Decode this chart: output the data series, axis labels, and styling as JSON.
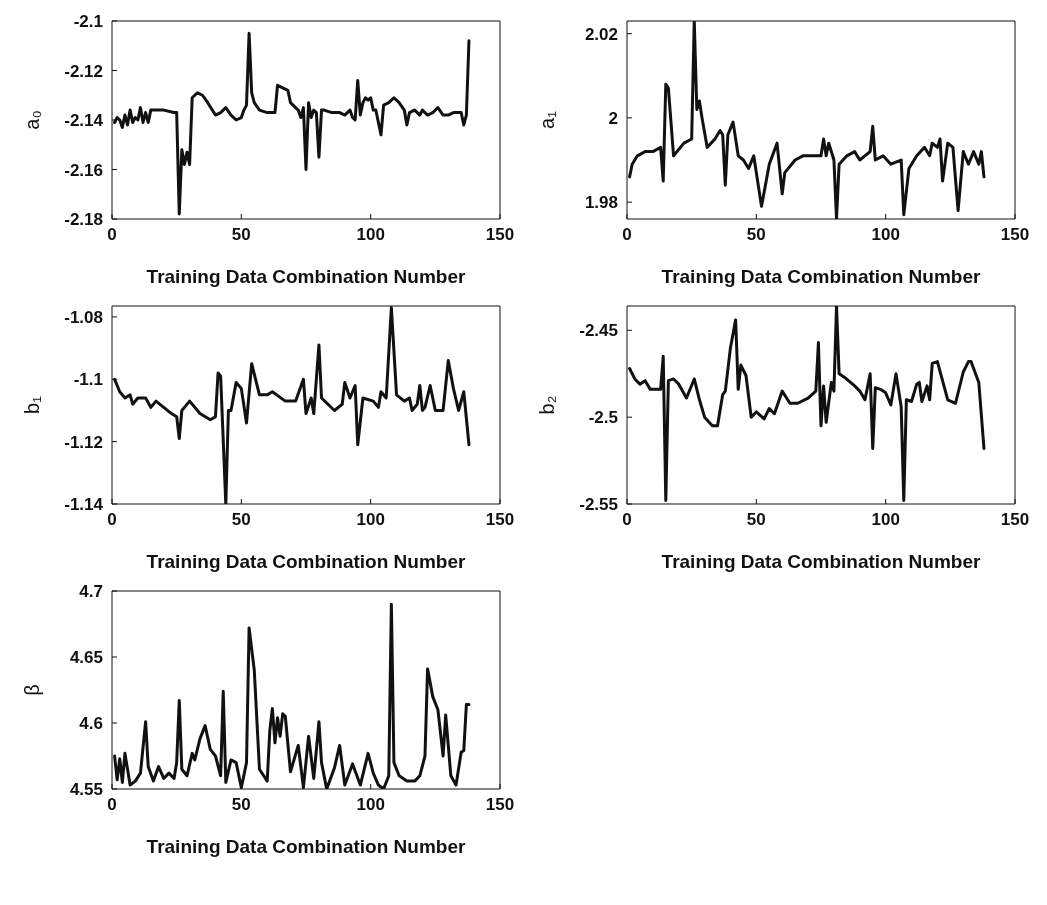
{
  "chart_data": [
    {
      "type": "line",
      "xlabel": "Training Data Combination Number",
      "ylabel": "a₀",
      "xlim": [
        0,
        150
      ],
      "xticks": [
        0,
        50,
        100,
        150
      ],
      "ylim": [
        -2.18,
        -2.1
      ],
      "yticks": [
        -2.18,
        -2.16,
        -2.14,
        -2.12,
        -2.1
      ],
      "marker": "none",
      "grid": false,
      "series": [
        {
          "color": "#111111",
          "x": [
            1,
            2,
            3,
            4,
            5,
            6,
            7,
            8,
            9,
            10,
            11,
            12,
            13,
            14,
            15,
            17,
            20,
            24,
            25,
            26,
            27,
            28,
            29,
            30,
            31,
            33,
            35,
            37,
            40,
            42,
            44,
            46,
            48,
            50,
            51,
            52,
            53,
            54,
            55,
            57,
            60,
            63,
            64,
            66,
            68,
            69,
            70,
            72,
            73,
            74,
            75,
            76,
            77,
            78,
            79,
            80,
            81,
            82,
            85,
            88,
            90,
            92,
            93,
            94,
            95,
            96,
            97,
            98,
            99,
            100,
            101,
            102,
            104,
            105,
            107,
            109,
            111,
            113,
            114,
            115,
            117,
            119,
            120,
            122,
            124,
            126,
            128,
            130,
            132,
            134,
            135,
            136,
            137,
            138
          ],
          "values": [
            -2.141,
            -2.139,
            -2.14,
            -2.143,
            -2.138,
            -2.142,
            -2.136,
            -2.141,
            -2.139,
            -2.14,
            -2.135,
            -2.141,
            -2.137,
            -2.141,
            -2.136,
            -2.136,
            -2.136,
            -2.137,
            -2.137,
            -2.178,
            -2.152,
            -2.158,
            -2.153,
            -2.158,
            -2.131,
            -2.129,
            -2.13,
            -2.133,
            -2.138,
            -2.137,
            -2.135,
            -2.138,
            -2.14,
            -2.139,
            -2.136,
            -2.134,
            -2.105,
            -2.129,
            -2.133,
            -2.136,
            -2.137,
            -2.137,
            -2.126,
            -2.127,
            -2.128,
            -2.133,
            -2.134,
            -2.136,
            -2.139,
            -2.135,
            -2.16,
            -2.133,
            -2.139,
            -2.136,
            -2.137,
            -2.155,
            -2.136,
            -2.136,
            -2.137,
            -2.137,
            -2.138,
            -2.136,
            -2.139,
            -2.14,
            -2.124,
            -2.138,
            -2.133,
            -2.131,
            -2.132,
            -2.131,
            -2.136,
            -2.136,
            -2.146,
            -2.134,
            -2.133,
            -2.131,
            -2.133,
            -2.136,
            -2.142,
            -2.137,
            -2.136,
            -2.138,
            -2.136,
            -2.138,
            -2.137,
            -2.135,
            -2.138,
            -2.138,
            -2.137,
            -2.137,
            -2.137,
            -2.142,
            -2.138,
            -2.108
          ]
        }
      ]
    },
    {
      "type": "line",
      "xlabel": "Training Data Combination Number",
      "ylabel": "a₁",
      "xlim": [
        0,
        150
      ],
      "xticks": [
        0,
        50,
        100,
        150
      ],
      "ylim": [
        1.976,
        2.023
      ],
      "yticks": [
        {
          "value": 1.98,
          "label": "1.98"
        },
        {
          "value": 2,
          "label": "2"
        },
        {
          "value": 2.02,
          "label": "2.02"
        }
      ],
      "marker": "none",
      "grid": false,
      "series": [
        {
          "color": "#111111",
          "x": [
            1,
            2,
            4,
            7,
            10,
            13,
            14,
            15,
            16,
            18,
            22,
            25,
            26,
            27,
            28,
            29,
            31,
            34,
            36,
            37,
            38,
            39,
            41,
            43,
            45,
            47,
            49,
            52,
            55,
            58,
            60,
            61,
            65,
            68,
            75,
            76,
            77,
            78,
            80,
            81,
            82,
            85,
            88,
            90,
            94,
            95,
            96,
            99,
            102,
            106,
            107,
            109,
            112,
            115,
            117,
            118,
            120,
            121,
            122,
            124,
            126,
            128,
            130,
            132,
            134,
            136,
            137,
            138
          ],
          "values": [
            1.986,
            1.989,
            1.991,
            1.992,
            1.992,
            1.993,
            1.985,
            2.008,
            2.007,
            1.991,
            1.994,
            1.995,
            2.023,
            2.002,
            2.004,
            2.0,
            1.993,
            1.995,
            1.997,
            1.996,
            1.984,
            1.996,
            1.999,
            1.991,
            1.99,
            1.988,
            1.991,
            1.979,
            1.989,
            1.994,
            1.982,
            1.987,
            1.99,
            1.991,
            1.991,
            1.995,
            1.991,
            1.994,
            1.99,
            1.976,
            1.989,
            1.991,
            1.992,
            1.99,
            1.992,
            1.998,
            1.99,
            1.991,
            1.989,
            1.99,
            1.977,
            1.988,
            1.991,
            1.993,
            1.991,
            1.994,
            1.993,
            1.995,
            1.985,
            1.994,
            1.993,
            1.978,
            1.992,
            1.989,
            1.992,
            1.989,
            1.992,
            1.986
          ]
        }
      ]
    },
    {
      "type": "line",
      "xlabel": "Training Data Combination Number",
      "ylabel": "b₁",
      "xlim": [
        0,
        150
      ],
      "xticks": [
        0,
        50,
        100,
        150
      ],
      "ylim": [
        -1.14,
        -1.0765
      ],
      "yticks": [
        -1.14,
        -1.12,
        {
          "value": -1.1,
          "label": "-1.1"
        },
        -1.08
      ],
      "marker": "none",
      "grid": false,
      "series": [
        {
          "color": "#111111",
          "x": [
            1,
            3,
            5,
            7,
            8,
            10,
            13,
            15,
            17,
            20,
            23,
            25,
            26,
            27,
            30,
            34,
            38,
            40,
            41,
            42,
            44,
            45,
            46,
            48,
            50,
            52,
            54,
            57,
            60,
            62,
            67,
            71,
            74,
            75,
            77,
            78,
            80,
            81,
            86,
            89,
            90,
            92,
            94,
            95,
            97,
            101,
            103,
            104,
            106,
            108,
            110,
            113,
            115,
            116,
            118,
            119,
            120,
            121,
            123,
            125,
            128,
            130,
            132,
            134,
            136,
            138
          ],
          "values": [
            -1.1,
            -1.104,
            -1.106,
            -1.105,
            -1.108,
            -1.106,
            -1.106,
            -1.109,
            -1.107,
            -1.109,
            -1.111,
            -1.112,
            -1.119,
            -1.11,
            -1.107,
            -1.111,
            -1.113,
            -1.112,
            -1.098,
            -1.099,
            -1.14,
            -1.11,
            -1.11,
            -1.101,
            -1.103,
            -1.114,
            -1.095,
            -1.105,
            -1.105,
            -1.104,
            -1.107,
            -1.107,
            -1.1,
            -1.111,
            -1.106,
            -1.111,
            -1.089,
            -1.106,
            -1.11,
            -1.108,
            -1.101,
            -1.106,
            -1.102,
            -1.121,
            -1.106,
            -1.107,
            -1.109,
            -1.104,
            -1.106,
            -1.077,
            -1.105,
            -1.107,
            -1.106,
            -1.11,
            -1.108,
            -1.102,
            -1.11,
            -1.109,
            -1.102,
            -1.11,
            -1.11,
            -1.094,
            -1.103,
            -1.11,
            -1.104,
            -1.121
          ]
        }
      ]
    },
    {
      "type": "line",
      "xlabel": "Training Data Combination Number",
      "ylabel": "b₂",
      "xlim": [
        0,
        150
      ],
      "xticks": [
        0,
        50,
        100,
        150
      ],
      "ylim": [
        -2.55,
        -2.436
      ],
      "yticks": [
        -2.55,
        {
          "value": -2.5,
          "label": "-2.5"
        },
        -2.45
      ],
      "marker": "none",
      "grid": false,
      "series": [
        {
          "color": "#111111",
          "x": [
            1,
            3,
            5,
            7,
            9,
            12,
            13,
            14,
            15,
            16,
            18,
            20,
            23,
            26,
            28,
            30,
            33,
            35,
            37,
            38,
            40,
            42,
            43,
            44,
            46,
            48,
            50,
            53,
            55,
            57,
            60,
            63,
            66,
            70,
            73,
            74,
            75,
            76,
            77,
            79,
            80,
            81,
            82,
            84,
            88,
            90,
            92,
            94,
            95,
            96,
            98,
            100,
            102,
            104,
            106,
            107,
            108,
            110,
            112,
            113,
            114,
            116,
            117,
            118,
            120,
            124,
            127,
            130,
            132,
            133,
            134,
            136,
            138
          ],
          "values": [
            -2.472,
            -2.478,
            -2.481,
            -2.479,
            -2.484,
            -2.484,
            -2.484,
            -2.465,
            -2.548,
            -2.479,
            -2.478,
            -2.481,
            -2.489,
            -2.478,
            -2.49,
            -2.5,
            -2.505,
            -2.505,
            -2.487,
            -2.485,
            -2.46,
            -2.444,
            -2.484,
            -2.47,
            -2.476,
            -2.5,
            -2.497,
            -2.501,
            -2.495,
            -2.498,
            -2.485,
            -2.492,
            -2.492,
            -2.489,
            -2.485,
            -2.457,
            -2.505,
            -2.482,
            -2.503,
            -2.48,
            -2.485,
            -2.436,
            -2.475,
            -2.477,
            -2.482,
            -2.485,
            -2.49,
            -2.475,
            -2.518,
            -2.483,
            -2.484,
            -2.486,
            -2.493,
            -2.475,
            -2.494,
            -2.548,
            -2.49,
            -2.491,
            -2.481,
            -2.48,
            -2.491,
            -2.482,
            -2.49,
            -2.469,
            -2.468,
            -2.49,
            -2.492,
            -2.474,
            -2.468,
            -2.468,
            -2.472,
            -2.48,
            -2.518
          ]
        }
      ]
    },
    {
      "type": "line",
      "xlabel": "Training Data Combination Number",
      "ylabel": "β",
      "xlim": [
        0,
        150
      ],
      "xticks": [
        0,
        50,
        100,
        150
      ],
      "ylim": [
        4.55,
        4.7
      ],
      "yticks": [
        4.55,
        {
          "value": 4.6,
          "label": "4.6"
        },
        4.65,
        {
          "value": 4.7,
          "label": "4.7"
        }
      ],
      "marker": "none",
      "grid": false,
      "series": [
        {
          "color": "#111111",
          "x": [
            1,
            2,
            3,
            4,
            5,
            7,
            9,
            11,
            13,
            14,
            16,
            18,
            20,
            22,
            24,
            25,
            26,
            27,
            29,
            31,
            32,
            34,
            36,
            38,
            40,
            42,
            43,
            44,
            46,
            48,
            50,
            52,
            53,
            55,
            57,
            60,
            61,
            62,
            63,
            64,
            65,
            66,
            67,
            69,
            72,
            74,
            76,
            78,
            80,
            81,
            83,
            86,
            88,
            90,
            93,
            96,
            99,
            101,
            103,
            105,
            107,
            108,
            109,
            111,
            114,
            117,
            119,
            121,
            122,
            124,
            126,
            128,
            129,
            131,
            133,
            135,
            136,
            137,
            138
          ],
          "values": [
            4.575,
            4.557,
            4.573,
            4.555,
            4.577,
            4.553,
            4.556,
            4.562,
            4.601,
            4.567,
            4.556,
            4.567,
            4.558,
            4.562,
            4.558,
            4.57,
            4.617,
            4.565,
            4.56,
            4.577,
            4.572,
            4.588,
            4.598,
            4.58,
            4.575,
            4.56,
            4.624,
            4.555,
            4.572,
            4.57,
            4.551,
            4.57,
            4.672,
            4.64,
            4.565,
            4.556,
            4.594,
            4.611,
            4.585,
            4.604,
            4.59,
            4.607,
            4.605,
            4.563,
            4.583,
            4.551,
            4.59,
            4.558,
            4.601,
            4.57,
            4.55,
            4.566,
            4.583,
            4.553,
            4.569,
            4.553,
            4.577,
            4.562,
            4.553,
            4.55,
            4.56,
            4.69,
            4.57,
            4.56,
            4.556,
            4.556,
            4.56,
            4.575,
            4.641,
            4.62,
            4.61,
            4.575,
            4.606,
            4.56,
            4.553,
            4.578,
            4.579,
            4.614,
            4.614
          ]
        }
      ]
    }
  ]
}
